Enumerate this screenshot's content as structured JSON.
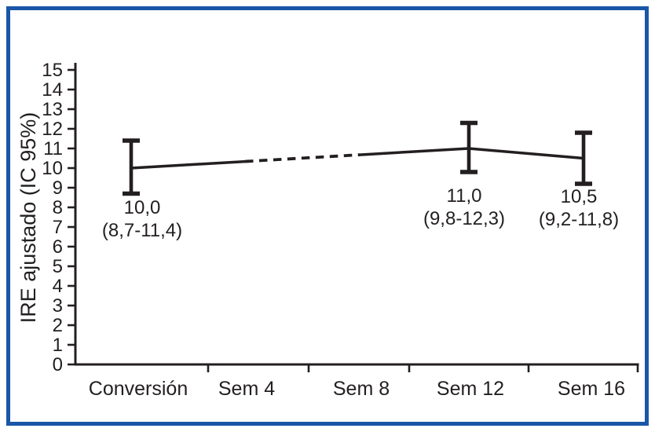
{
  "figure": {
    "background": "#ffffff",
    "border_color": "#1a56a8",
    "ink_color": "#231f20"
  },
  "chart_data": {
    "type": "line",
    "ylabel": "IRE ajustado (IC 95%)",
    "ylim": [
      0,
      15
    ],
    "y_ticks": [
      0,
      1,
      2,
      3,
      4,
      5,
      6,
      7,
      8,
      9,
      10,
      11,
      12,
      13,
      14,
      15
    ],
    "categories": [
      "Conversión",
      "Sem 4",
      "Sem 8",
      "Sem 12",
      "Sem 16"
    ],
    "grid": false,
    "legend": "none",
    "dashed_segment": {
      "from_category": "Sem 4",
      "to_category": "Sem 8"
    },
    "series": [
      {
        "points": [
          {
            "category": "Conversión",
            "value": 10.0,
            "ci_low": 8.7,
            "ci_high": 11.4,
            "value_label": "10,0",
            "ci_label": "(8,7-11,4)"
          },
          {
            "category": "Sem 12",
            "value": 11.0,
            "ci_low": 9.8,
            "ci_high": 12.3,
            "value_label": "11,0",
            "ci_label": "(9,8-12,3)"
          },
          {
            "category": "Sem 16",
            "value": 10.5,
            "ci_low": 9.2,
            "ci_high": 11.8,
            "value_label": "10,5",
            "ci_label": "(9,2-11,8)"
          }
        ]
      }
    ]
  }
}
